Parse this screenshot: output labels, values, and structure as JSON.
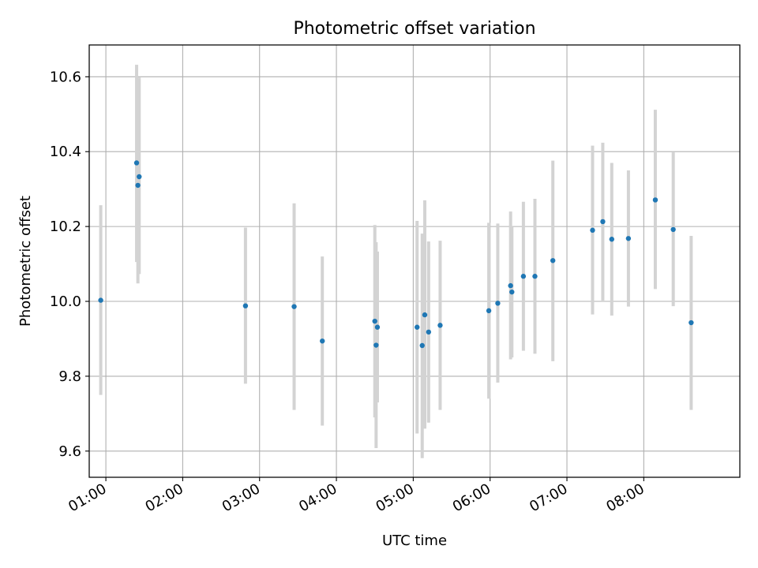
{
  "chart_data": {
    "type": "scatter",
    "title": "Photometric offset variation",
    "xlabel": "UTC time",
    "ylabel": "Photometric offset",
    "xlim": [
      "00:47",
      "09:15"
    ],
    "ylim": [
      9.53,
      10.685
    ],
    "grid": true,
    "x_ticks": [
      "01:00",
      "02:00",
      "03:00",
      "04:00",
      "05:00",
      "06:00",
      "07:00",
      "08:00"
    ],
    "y_ticks": [
      9.6,
      9.8,
      10.0,
      10.2,
      10.4,
      10.6
    ],
    "y_tick_labels": [
      "9.6",
      "9.8",
      "10.0",
      "10.2",
      "10.4",
      "10.6"
    ],
    "colors": {
      "points": "#1f77b4",
      "errorbars": "#d3d3d3",
      "grid": "#b0b0b0"
    },
    "series": [
      {
        "points": [
          {
            "x": "00:56",
            "y": 10.003,
            "ylow": 9.75,
            "yhigh": 10.257
          },
          {
            "x": "01:24",
            "y": 10.37,
            "ylow": 10.105,
            "yhigh": 10.632
          },
          {
            "x": "01:25",
            "y": 10.31,
            "ylow": 10.048,
            "yhigh": 10.57
          },
          {
            "x": "01:26",
            "y": 10.333,
            "ylow": 10.073,
            "yhigh": 10.598
          },
          {
            "x": "02:49",
            "y": 9.988,
            "ylow": 9.78,
            "yhigh": 10.197
          },
          {
            "x": "03:27",
            "y": 9.986,
            "ylow": 9.71,
            "yhigh": 10.262
          },
          {
            "x": "03:49",
            "y": 9.894,
            "ylow": 9.668,
            "yhigh": 10.12
          },
          {
            "x": "04:30",
            "y": 9.947,
            "ylow": 9.69,
            "yhigh": 10.204
          },
          {
            "x": "04:31",
            "y": 9.883,
            "ylow": 9.608,
            "yhigh": 10.158
          },
          {
            "x": "04:32",
            "y": 9.931,
            "ylow": 9.73,
            "yhigh": 10.133
          },
          {
            "x": "05:03",
            "y": 9.931,
            "ylow": 9.647,
            "yhigh": 10.215
          },
          {
            "x": "05:07",
            "y": 9.882,
            "ylow": 9.581,
            "yhigh": 10.181
          },
          {
            "x": "05:09",
            "y": 9.964,
            "ylow": 9.66,
            "yhigh": 10.27
          },
          {
            "x": "05:12",
            "y": 9.918,
            "ylow": 9.676,
            "yhigh": 10.16
          },
          {
            "x": "05:21",
            "y": 9.936,
            "ylow": 9.71,
            "yhigh": 10.162
          },
          {
            "x": "05:59",
            "y": 9.975,
            "ylow": 9.74,
            "yhigh": 10.21
          },
          {
            "x": "06:06",
            "y": 9.995,
            "ylow": 9.783,
            "yhigh": 10.208
          },
          {
            "x": "06:16",
            "y": 10.042,
            "ylow": 9.845,
            "yhigh": 10.24
          },
          {
            "x": "06:17",
            "y": 10.025,
            "ylow": 9.85,
            "yhigh": 10.2
          },
          {
            "x": "06:26",
            "y": 10.067,
            "ylow": 9.868,
            "yhigh": 10.266
          },
          {
            "x": "06:35",
            "y": 10.067,
            "ylow": 9.86,
            "yhigh": 10.274
          },
          {
            "x": "06:49",
            "y": 10.109,
            "ylow": 9.84,
            "yhigh": 10.376
          },
          {
            "x": "07:20",
            "y": 10.19,
            "ylow": 9.965,
            "yhigh": 10.416
          },
          {
            "x": "07:28",
            "y": 10.213,
            "ylow": 10.002,
            "yhigh": 10.424
          },
          {
            "x": "07:35",
            "y": 10.166,
            "ylow": 9.962,
            "yhigh": 10.37
          },
          {
            "x": "07:48",
            "y": 10.168,
            "ylow": 9.986,
            "yhigh": 10.35
          },
          {
            "x": "08:09",
            "y": 10.271,
            "ylow": 10.033,
            "yhigh": 10.512
          },
          {
            "x": "08:23",
            "y": 10.192,
            "ylow": 9.987,
            "yhigh": 10.398
          },
          {
            "x": "08:37",
            "y": 9.943,
            "ylow": 9.71,
            "yhigh": 10.175
          }
        ]
      }
    ]
  }
}
